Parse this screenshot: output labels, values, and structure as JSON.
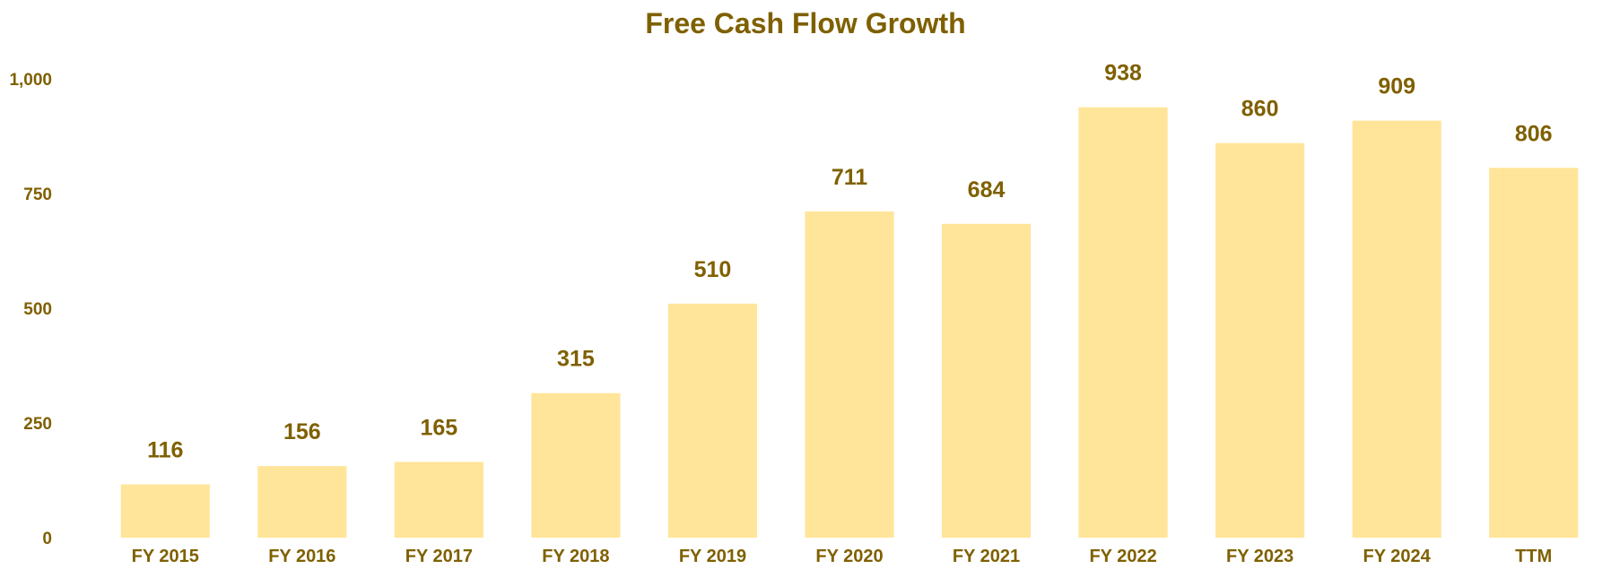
{
  "chart_data": {
    "type": "bar",
    "title": "Free Cash Flow Growth",
    "categories": [
      "FY 2015",
      "FY 2016",
      "FY 2017",
      "FY 2018",
      "FY 2019",
      "FY 2020",
      "FY 2021",
      "FY 2022",
      "FY 2023",
      "FY 2024",
      "TTM"
    ],
    "values": [
      116,
      156,
      165,
      315,
      510,
      711,
      684,
      938,
      860,
      909,
      806
    ],
    "data_labels": [
      "116",
      "156",
      "165",
      "315",
      "510",
      "711",
      "684",
      "938",
      "860",
      "909",
      "806"
    ],
    "yticks": [
      0,
      250,
      500,
      750,
      1000
    ],
    "ytick_labels": [
      "0",
      "250",
      "500",
      "750",
      "1,000"
    ],
    "ylim": [
      0,
      1000
    ],
    "xlabel": "",
    "ylabel": "",
    "grid": false,
    "legend": "none",
    "bar_color": "#FFE599",
    "text_color": "#7F6000"
  }
}
